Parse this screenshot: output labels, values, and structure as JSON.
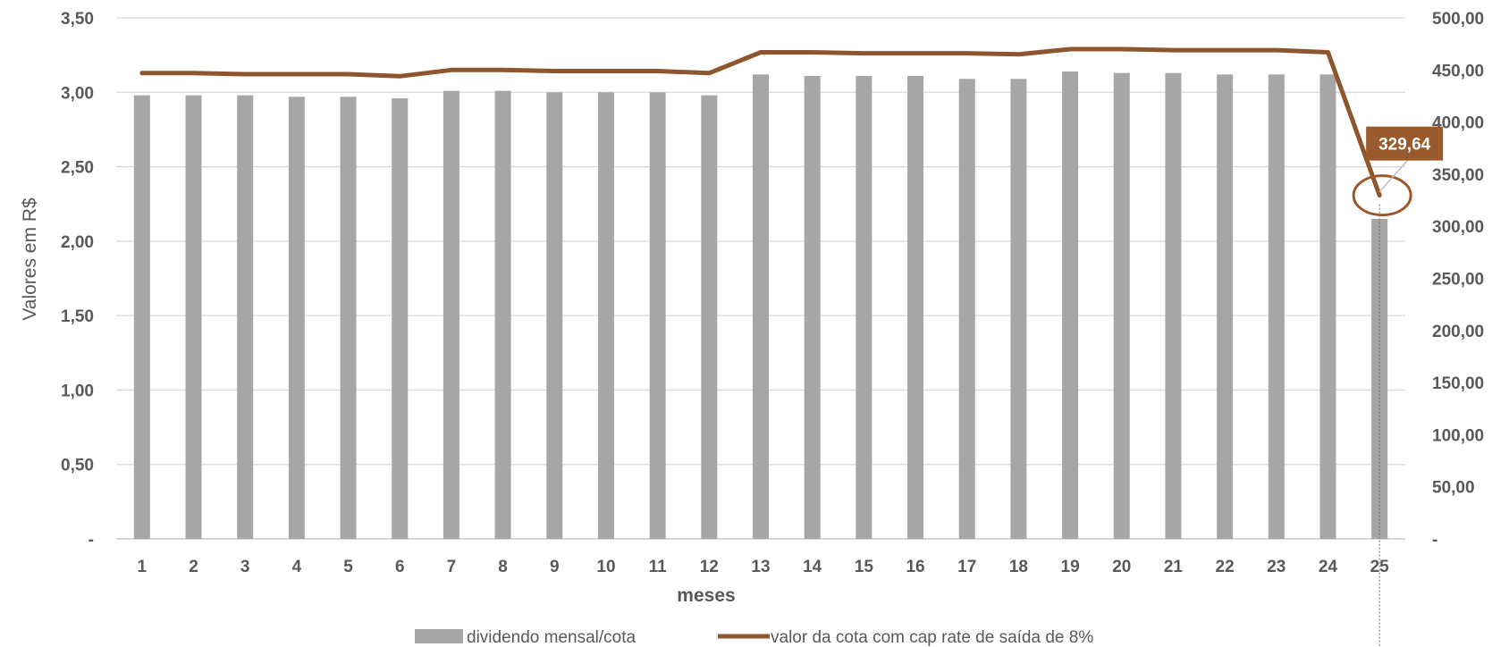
{
  "chart_data": {
    "type": "bar+line",
    "categories": [
      "1",
      "2",
      "3",
      "4",
      "5",
      "6",
      "7",
      "8",
      "9",
      "10",
      "11",
      "12",
      "13",
      "14",
      "15",
      "16",
      "17",
      "18",
      "19",
      "20",
      "21",
      "22",
      "23",
      "24",
      "25"
    ],
    "series": [
      {
        "name": "dividendo mensal/cota",
        "type": "bar",
        "axis": "left",
        "color": "#a6a6a6",
        "values": [
          2.98,
          2.98,
          2.98,
          2.97,
          2.97,
          2.96,
          3.01,
          3.01,
          3.0,
          3.0,
          3.0,
          2.98,
          3.12,
          3.11,
          3.11,
          3.11,
          3.09,
          3.09,
          3.14,
          3.13,
          3.13,
          3.12,
          3.12,
          3.12,
          2.15
        ]
      },
      {
        "name": "valor da cota com cap rate de saída de 8%",
        "type": "line",
        "axis": "right",
        "color": "#8e562e",
        "values": [
          447,
          447,
          446,
          446,
          446,
          444,
          450,
          450,
          449,
          449,
          449,
          447,
          467,
          467,
          466,
          466,
          466,
          465,
          470,
          470,
          469,
          469,
          469,
          467,
          329.64
        ]
      }
    ],
    "xlabel": "meses",
    "ylabel": "Valores em R$",
    "y_left": {
      "range": [
        0,
        3.5
      ],
      "ticks": [
        "-",
        "0,50",
        "1,00",
        "1,50",
        "2,00",
        "2,50",
        "3,00",
        "3,50"
      ]
    },
    "y_right": {
      "range": [
        0,
        500
      ],
      "ticks": [
        "-",
        "50,00",
        "100,00",
        "150,00",
        "200,00",
        "250,00",
        "300,00",
        "350,00",
        "400,00",
        "450,00",
        "500,00"
      ]
    },
    "grid": true,
    "legend_position": "bottom",
    "callout": {
      "category": "25",
      "label": "329,64",
      "color": "#9b5a2b"
    }
  }
}
